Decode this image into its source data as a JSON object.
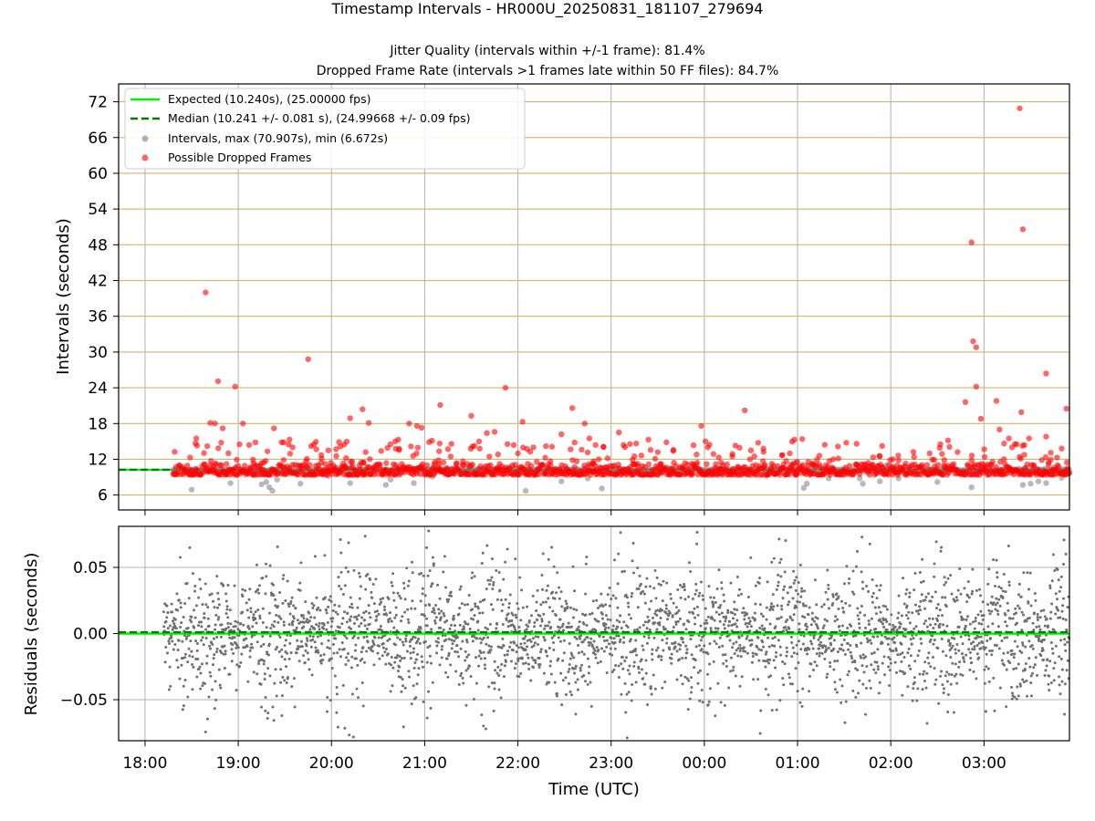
{
  "chart_data": [
    {
      "type": "scatter",
      "title": "Timestamp Intervals - HR000U_20250831_181107_279694",
      "subtitle_lines": [
        "Jitter Quality (intervals within +/-1 frame): 81.4%",
        "Dropped Frame Rate (intervals >1 frames late within 50 FF files): 84.7%"
      ],
      "xlabel": "",
      "ylabel": "Intervals (seconds)",
      "xlim": [
        "17:43",
        "03:55"
      ],
      "ylim": [
        3.5,
        75
      ],
      "yticks": [
        6,
        12,
        18,
        24,
        30,
        36,
        42,
        48,
        54,
        60,
        66,
        72
      ],
      "grid": true,
      "legend_position": "top-left",
      "legend": [
        "Expected (10.240s), (25.00000 fps)",
        "Median (10.241 +/- 0.081 s), (24.99668 +/- 0.09 fps)",
        "Intervals, max (70.907s), min (6.672s)",
        "Possible Dropped Frames"
      ],
      "series": [
        {
          "name": "Expected (10.240s), (25.00000 fps)",
          "kind": "hline",
          "y": 10.24,
          "color": "#00ee00"
        },
        {
          "name": "Median (10.241 +/- 0.081 s), (24.99668 +/- 0.09 fps)",
          "kind": "hline-dashed",
          "y": 10.241,
          "color": "#008000"
        },
        {
          "name": "Intervals, max (70.907s), min (6.672s)",
          "kind": "scatter",
          "color": "#808080",
          "points": [
            [
              "18:30",
              6.9
            ],
            [
              "18:55",
              8.0
            ],
            [
              "19:10",
              9.3
            ],
            [
              "19:15",
              7.8
            ],
            [
              "19:18",
              8.2
            ],
            [
              "19:20",
              7.3
            ],
            [
              "19:22",
              6.7
            ],
            [
              "19:25",
              8.6
            ],
            [
              "19:35",
              9.9
            ],
            [
              "19:40",
              7.9
            ],
            [
              "19:58",
              9.2
            ],
            [
              "20:12",
              8.0
            ],
            [
              "20:35",
              7.7
            ],
            [
              "20:38",
              8.6
            ],
            [
              "20:42",
              9.6
            ],
            [
              "20:53",
              8.0
            ],
            [
              "21:00",
              9.4
            ],
            [
              "21:05",
              9.1
            ],
            [
              "22:05",
              6.7
            ],
            [
              "22:28",
              8.3
            ],
            [
              "22:45",
              8.8
            ],
            [
              "22:54",
              7.1
            ],
            [
              "23:05",
              10.5
            ],
            [
              "23:20",
              9.4
            ],
            [
              "00:10",
              9.6
            ],
            [
              "00:40",
              9.2
            ],
            [
              "00:55",
              9.4
            ],
            [
              "01:00",
              11.6
            ],
            [
              "01:04",
              7.2
            ],
            [
              "01:06",
              7.9
            ],
            [
              "01:15",
              9.4
            ],
            [
              "01:20",
              8.8
            ],
            [
              "01:40",
              8.8
            ],
            [
              "01:42",
              7.9
            ],
            [
              "01:53",
              8.3
            ],
            [
              "01:57",
              11.0
            ],
            [
              "02:02",
              9.8
            ],
            [
              "02:05",
              8.8
            ],
            [
              "02:30",
              8.2
            ],
            [
              "02:35",
              9.9
            ],
            [
              "02:52",
              7.3
            ],
            [
              "03:03",
              9.6
            ],
            [
              "03:25",
              7.7
            ],
            [
              "03:30",
              7.9
            ],
            [
              "03:35",
              8.3
            ],
            [
              "03:40",
              8.0
            ],
            [
              "03:45",
              9.6
            ],
            [
              "03:50",
              8.9
            ]
          ]
        },
        {
          "name": "Possible Dropped Frames",
          "kind": "scatter",
          "color": "#ff0000",
          "band": {
            "x_from": "18:18",
            "x_to": "03:55",
            "y_from": 9.4,
            "y_to": 11.2
          },
          "points": [
            [
              "18:39",
              40.0
            ],
            [
              "18:42",
              18.1
            ],
            [
              "18:45",
              18.0
            ],
            [
              "18:47",
              25.1
            ],
            [
              "18:50",
              17.2
            ],
            [
              "18:58",
              24.2
            ],
            [
              "19:03",
              18.0
            ],
            [
              "18:33",
              15.5
            ],
            [
              "18:29",
              12.3
            ],
            [
              "19:07",
              14.4
            ],
            [
              "19:23",
              17.2
            ],
            [
              "19:33",
              15.3
            ],
            [
              "19:35",
              14.0
            ],
            [
              "19:45",
              28.8
            ],
            [
              "19:47",
              14.2
            ],
            [
              "19:58",
              13.5
            ],
            [
              "20:03",
              13.7
            ],
            [
              "20:12",
              18.9
            ],
            [
              "20:20",
              20.4
            ],
            [
              "20:24",
              18.1
            ],
            [
              "20:22",
              13.2
            ],
            [
              "20:32",
              13.4
            ],
            [
              "20:41",
              15.0
            ],
            [
              "20:43",
              15.3
            ],
            [
              "20:50",
              18.0
            ],
            [
              "20:55",
              17.6
            ],
            [
              "20:58",
              17.3
            ],
            [
              "21:10",
              21.1
            ],
            [
              "21:15",
              13.7
            ],
            [
              "21:30",
              19.3
            ],
            [
              "21:35",
              15.0
            ],
            [
              "21:40",
              16.4
            ],
            [
              "21:45",
              16.6
            ],
            [
              "21:52",
              24.0
            ],
            [
              "22:00",
              13.0
            ],
            [
              "22:03",
              18.3
            ],
            [
              "22:10",
              14.0
            ],
            [
              "22:18",
              14.2
            ],
            [
              "22:28",
              16.2
            ],
            [
              "22:35",
              20.6
            ],
            [
              "22:43",
              18.0
            ],
            [
              "22:46",
              15.5
            ],
            [
              "22:50",
              14.4
            ],
            [
              "22:55",
              14.1
            ],
            [
              "23:05",
              16.5
            ],
            [
              "23:08",
              14.4
            ],
            [
              "23:15",
              12.5
            ],
            [
              "23:24",
              15.3
            ],
            [
              "23:30",
              13.2
            ],
            [
              "23:40",
              13.4
            ],
            [
              "23:55",
              12.8
            ],
            [
              "23:58",
              17.6
            ],
            [
              "00:18",
              12.5
            ],
            [
              "00:20",
              14.3
            ],
            [
              "00:26",
              20.2
            ],
            [
              "00:30",
              13.5
            ],
            [
              "00:38",
              13.8
            ],
            [
              "00:50",
              12.7
            ],
            [
              "00:55",
              13.0
            ],
            [
              "00:58",
              15.3
            ],
            [
              "01:03",
              15.4
            ],
            [
              "01:14",
              12.6
            ],
            [
              "01:23",
              12.0
            ],
            [
              "01:38",
              14.6
            ],
            [
              "01:53",
              12.5
            ],
            [
              "02:05",
              11.8
            ],
            [
              "02:15",
              12.4
            ],
            [
              "02:25",
              13.0
            ],
            [
              "02:33",
              12.9
            ],
            [
              "02:43",
              13.2
            ],
            [
              "02:52",
              11.8
            ],
            [
              "02:55",
              24.2
            ],
            [
              "02:48",
              21.6
            ],
            [
              "02:52",
              48.4
            ],
            [
              "02:53",
              31.8
            ],
            [
              "02:55",
              30.8
            ],
            [
              "02:58",
              18.8
            ],
            [
              "03:08",
              21.8
            ],
            [
              "03:10",
              17.0
            ],
            [
              "03:16",
              15.5
            ],
            [
              "03:18",
              14.0
            ],
            [
              "03:21",
              14.5
            ],
            [
              "03:23",
              70.9
            ],
            [
              "03:25",
              50.6
            ],
            [
              "03:24",
              19.9
            ],
            [
              "03:26",
              14.4
            ],
            [
              "03:29",
              15.5
            ],
            [
              "03:40",
              26.4
            ],
            [
              "03:40",
              15.8
            ],
            [
              "03:43",
              13.1
            ],
            [
              "03:47",
              12.3
            ],
            [
              "03:50",
              13.8
            ],
            [
              "03:53",
              20.5
            ]
          ]
        }
      ]
    },
    {
      "type": "scatter",
      "title": "",
      "xlabel": "Time (UTC)",
      "ylabel": "Residuals (seconds)",
      "xlim": [
        "17:43",
        "03:55"
      ],
      "ylim": [
        -0.081,
        0.081
      ],
      "xticks": [
        "18:00",
        "19:00",
        "20:00",
        "21:00",
        "22:00",
        "23:00",
        "00:00",
        "01:00",
        "02:00",
        "03:00"
      ],
      "yticks": [
        -0.05,
        0.0,
        0.05
      ],
      "ytick_labels": [
        "−0.05",
        "0.00",
        "0.05"
      ],
      "grid": true,
      "series": [
        {
          "kind": "hline",
          "y": 0.0,
          "color": "#00ee00"
        },
        {
          "kind": "hline-dashed",
          "y": 0.001,
          "color": "#008000"
        },
        {
          "kind": "scatter",
          "color": "#707070",
          "x_from": "18:12",
          "x_to": "03:55",
          "distribution": "gaussian",
          "center": 0.0,
          "spread": 0.03,
          "count": 3000
        }
      ]
    }
  ]
}
